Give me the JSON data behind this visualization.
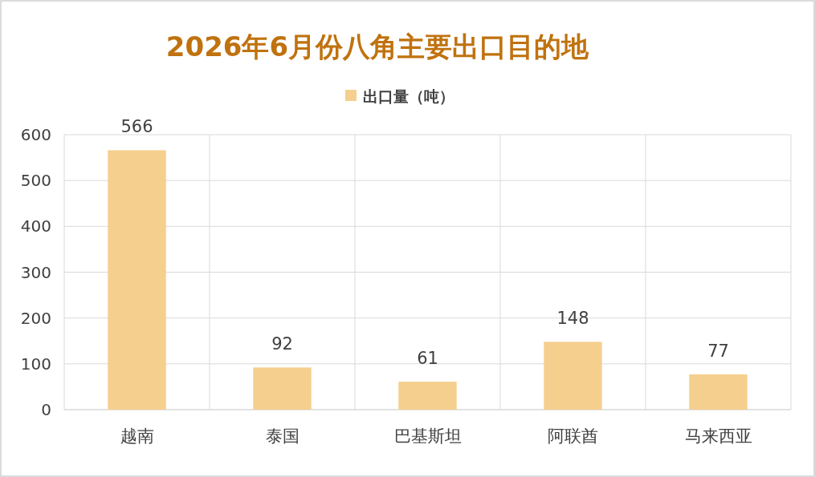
{
  "chart_data": {
    "type": "bar",
    "title": "2026年6月份八角主要出口目的地",
    "categories": [
      "越南",
      "泰国",
      "巴基斯坦",
      "阿联酋",
      "马来西亚"
    ],
    "series": [
      {
        "name": "出口量（吨）",
        "color": "#f5cf8e",
        "values": [
          566,
          92,
          61,
          148,
          77
        ]
      }
    ],
    "ylim": [
      0,
      600
    ],
    "yticks": [
      0,
      100,
      200,
      300,
      400,
      500,
      600
    ],
    "grid": true,
    "legend": "top",
    "data_labels": true
  }
}
